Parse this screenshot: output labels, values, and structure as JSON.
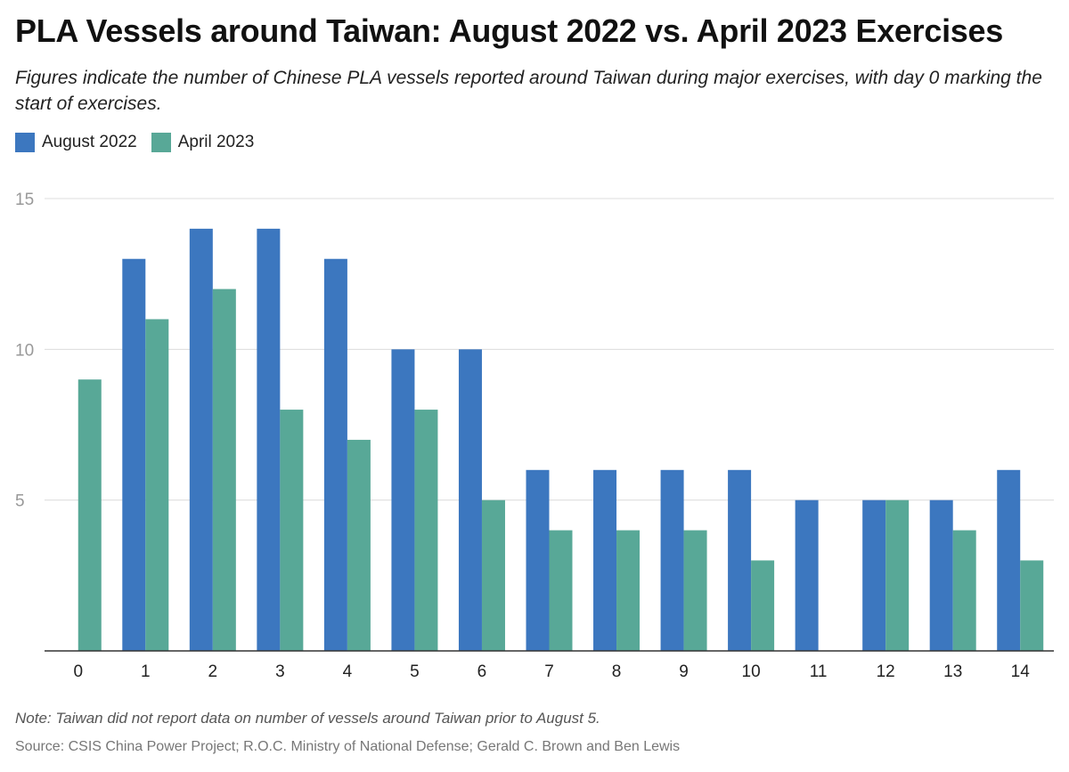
{
  "title": "PLA Vessels around Taiwan: August 2022 vs. April 2023 Exercises",
  "subtitle": "Figures indicate the number of Chinese PLA vessels reported around Taiwan during major exercises, with day 0 marking the start of exercises.",
  "note": "Note: Taiwan did not report data on number of vessels around Taiwan prior to August 5.",
  "source": "Source: CSIS China Power Project; R.O.C. Ministry of National Defense; Gerald C. Brown and Ben Lewis",
  "chart_data": {
    "type": "bar",
    "categories": [
      "0",
      "1",
      "2",
      "3",
      "4",
      "5",
      "6",
      "7",
      "8",
      "9",
      "10",
      "11",
      "12",
      "13",
      "14"
    ],
    "series": [
      {
        "name": "August 2022",
        "color": "#3c77bf",
        "values": [
          null,
          13,
          14,
          14,
          13,
          10,
          10,
          6,
          6,
          6,
          6,
          5,
          5,
          5,
          6
        ]
      },
      {
        "name": "April 2023",
        "color": "#58a897",
        "values": [
          9,
          11,
          12,
          8,
          7,
          8,
          5,
          4,
          4,
          4,
          3,
          null,
          5,
          4,
          3
        ]
      }
    ],
    "ylim": [
      0,
      15
    ],
    "yticks": [
      5,
      10,
      15
    ],
    "grid": true,
    "legend": "top-left",
    "xlabel": "",
    "ylabel": ""
  }
}
